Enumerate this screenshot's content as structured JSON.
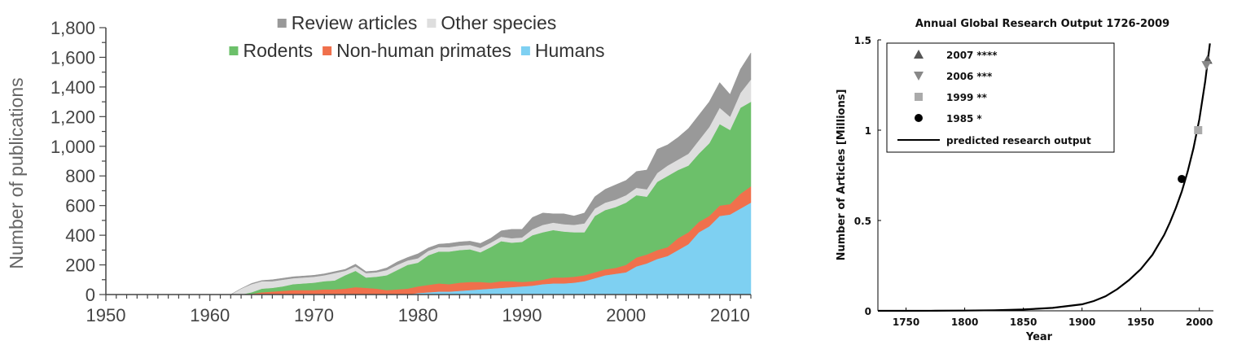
{
  "chart_data": [
    {
      "type": "area",
      "stacked": true,
      "title": "",
      "xlabel": "",
      "ylabel": "Number of publications",
      "xlim": [
        1950,
        2012
      ],
      "ylim": [
        0,
        1800
      ],
      "x_ticks": [
        1950,
        1960,
        1970,
        1980,
        1990,
        2000,
        2010
      ],
      "x_tick_labels": [
        "1950",
        "1960",
        "1970",
        "1980",
        "1990",
        "2000",
        "2010"
      ],
      "y_ticks": [
        0,
        200,
        400,
        600,
        800,
        1000,
        1200,
        1400,
        1600,
        1800
      ],
      "y_tick_labels": [
        "0",
        "200",
        "400",
        "600",
        "800",
        "1,000",
        "1,200",
        "1,400",
        "1,600",
        "1,800"
      ],
      "legend_position": "top",
      "legend": [
        {
          "name": "Review articles",
          "color": "#999999"
        },
        {
          "name": "Other species",
          "color": "#dedede"
        },
        {
          "name": "Rodents",
          "color": "#6cc06a"
        },
        {
          "name": "Non-human primates",
          "color": "#f0704c"
        },
        {
          "name": "Humans",
          "color": "#7ed0f2"
        }
      ],
      "x": [
        1950,
        1951,
        1952,
        1953,
        1954,
        1955,
        1956,
        1957,
        1958,
        1959,
        1960,
        1961,
        1962,
        1963,
        1964,
        1965,
        1966,
        1967,
        1968,
        1969,
        1970,
        1971,
        1972,
        1973,
        1974,
        1975,
        1976,
        1977,
        1978,
        1979,
        1980,
        1981,
        1982,
        1983,
        1984,
        1985,
        1986,
        1987,
        1988,
        1989,
        1990,
        1991,
        1992,
        1993,
        1994,
        1995,
        1996,
        1997,
        1998,
        1999,
        2000,
        2001,
        2002,
        2003,
        2004,
        2005,
        2006,
        2007,
        2008,
        2009,
        2010,
        2011,
        2012
      ],
      "series": [
        {
          "name": "Humans",
          "color": "#7ed0f2",
          "values": [
            0,
            0,
            0,
            0,
            0,
            0,
            0,
            0,
            0,
            0,
            0,
            0,
            0,
            0,
            0,
            0,
            0,
            0,
            0,
            0,
            0,
            0,
            0,
            0,
            0,
            0,
            0,
            0,
            0,
            0,
            10,
            15,
            20,
            20,
            25,
            30,
            35,
            40,
            45,
            50,
            55,
            60,
            70,
            75,
            75,
            80,
            90,
            110,
            130,
            140,
            150,
            190,
            210,
            240,
            260,
            300,
            340,
            420,
            460,
            530,
            540,
            580,
            620
          ]
        },
        {
          "name": "Non-human primates",
          "color": "#f0704c",
          "values": [
            0,
            0,
            0,
            0,
            0,
            0,
            0,
            0,
            0,
            0,
            0,
            0,
            0,
            0,
            5,
            15,
            20,
            25,
            30,
            30,
            30,
            35,
            35,
            40,
            50,
            45,
            40,
            30,
            35,
            40,
            45,
            50,
            55,
            50,
            55,
            55,
            50,
            40,
            45,
            40,
            30,
            30,
            30,
            40,
            40,
            40,
            40,
            40,
            40,
            40,
            50,
            60,
            60,
            60,
            60,
            80,
            80,
            70,
            70,
            70,
            70,
            100,
            110
          ]
        },
        {
          "name": "Rodents",
          "color": "#6cc06a",
          "values": [
            0,
            0,
            0,
            0,
            0,
            0,
            0,
            0,
            0,
            0,
            0,
            0,
            0,
            0,
            10,
            25,
            25,
            30,
            40,
            45,
            50,
            55,
            60,
            90,
            110,
            70,
            80,
            100,
            130,
            160,
            160,
            200,
            215,
            220,
            220,
            220,
            200,
            240,
            270,
            260,
            270,
            310,
            320,
            320,
            310,
            300,
            290,
            380,
            400,
            410,
            420,
            420,
            390,
            460,
            480,
            460,
            450,
            460,
            490,
            550,
            500,
            580,
            570
          ]
        },
        {
          "name": "Other species",
          "color": "#dedede",
          "values": [
            0,
            0,
            0,
            0,
            0,
            0,
            0,
            0,
            0,
            0,
            0,
            0,
            0,
            40,
            55,
            50,
            45,
            45,
            40,
            40,
            40,
            40,
            50,
            30,
            30,
            30,
            30,
            35,
            35,
            30,
            30,
            30,
            30,
            30,
            30,
            30,
            30,
            30,
            30,
            30,
            30,
            40,
            50,
            50,
            50,
            50,
            60,
            50,
            50,
            50,
            50,
            50,
            50,
            60,
            70,
            70,
            80,
            90,
            110,
            110,
            90,
            100,
            150
          ]
        },
        {
          "name": "Review articles",
          "color": "#999999",
          "values": [
            0,
            0,
            0,
            0,
            0,
            0,
            0,
            0,
            0,
            0,
            0,
            0,
            0,
            0,
            5,
            5,
            10,
            10,
            10,
            10,
            10,
            10,
            10,
            10,
            15,
            10,
            10,
            15,
            20,
            20,
            30,
            20,
            20,
            25,
            25,
            25,
            30,
            30,
            40,
            60,
            55,
            80,
            80,
            60,
            70,
            60,
            70,
            80,
            90,
            100,
            100,
            110,
            130,
            160,
            140,
            150,
            170,
            170,
            170,
            170,
            150,
            160,
            180
          ]
        }
      ]
    },
    {
      "type": "line",
      "title": "Annual Global Research Output 1726-2009",
      "xlabel": "Year",
      "ylabel": "Number of Articles [Millions]",
      "xlim": [
        1726,
        2012
      ],
      "ylim": [
        0,
        1.5
      ],
      "x_ticks": [
        1750,
        1800,
        1850,
        1900,
        1950,
        2000
      ],
      "x_tick_labels": [
        "1750",
        "1800",
        "1850",
        "1900",
        "1950",
        "2000"
      ],
      "y_ticks": [
        0,
        0.5,
        1,
        1.5
      ],
      "y_tick_labels": [
        "0",
        "0.5",
        "1",
        "1.5"
      ],
      "legend_position": "top-left",
      "legend": [
        {
          "name": "2007",
          "stars": "****",
          "marker": "triangle-up",
          "color": "#555555"
        },
        {
          "name": "2006",
          "stars": "***",
          "marker": "triangle-down",
          "color": "#888888"
        },
        {
          "name": "1999",
          "stars": "**",
          "marker": "square",
          "color": "#aaaaaa"
        },
        {
          "name": "1985",
          "stars": "*",
          "marker": "circle",
          "color": "#000000"
        },
        {
          "name": "predicted research output",
          "stars": "",
          "marker": "line",
          "color": "#000000"
        }
      ],
      "points": [
        {
          "label": "2007",
          "x": 2007,
          "y": 1.39,
          "marker": "triangle-up",
          "color": "#555555"
        },
        {
          "label": "2006",
          "x": 2006,
          "y": 1.36,
          "marker": "triangle-down",
          "color": "#888888"
        },
        {
          "label": "1999",
          "x": 1999,
          "y": 1.0,
          "marker": "square",
          "color": "#aaaaaa"
        },
        {
          "label": "1985",
          "x": 1985,
          "y": 0.73,
          "marker": "circle",
          "color": "#000000"
        }
      ],
      "predicted": {
        "name": "predicted research output",
        "x": [
          1726,
          1750,
          1775,
          1800,
          1825,
          1850,
          1875,
          1900,
          1910,
          1920,
          1930,
          1940,
          1950,
          1960,
          1970,
          1975,
          1980,
          1985,
          1990,
          1995,
          2000,
          2005,
          2009
        ],
        "y": [
          0.0001,
          0.0002,
          0.0005,
          0.0012,
          0.003,
          0.007,
          0.016,
          0.036,
          0.054,
          0.08,
          0.12,
          0.17,
          0.23,
          0.31,
          0.42,
          0.49,
          0.57,
          0.66,
          0.77,
          0.9,
          1.06,
          1.27,
          1.48
        ]
      }
    }
  ]
}
